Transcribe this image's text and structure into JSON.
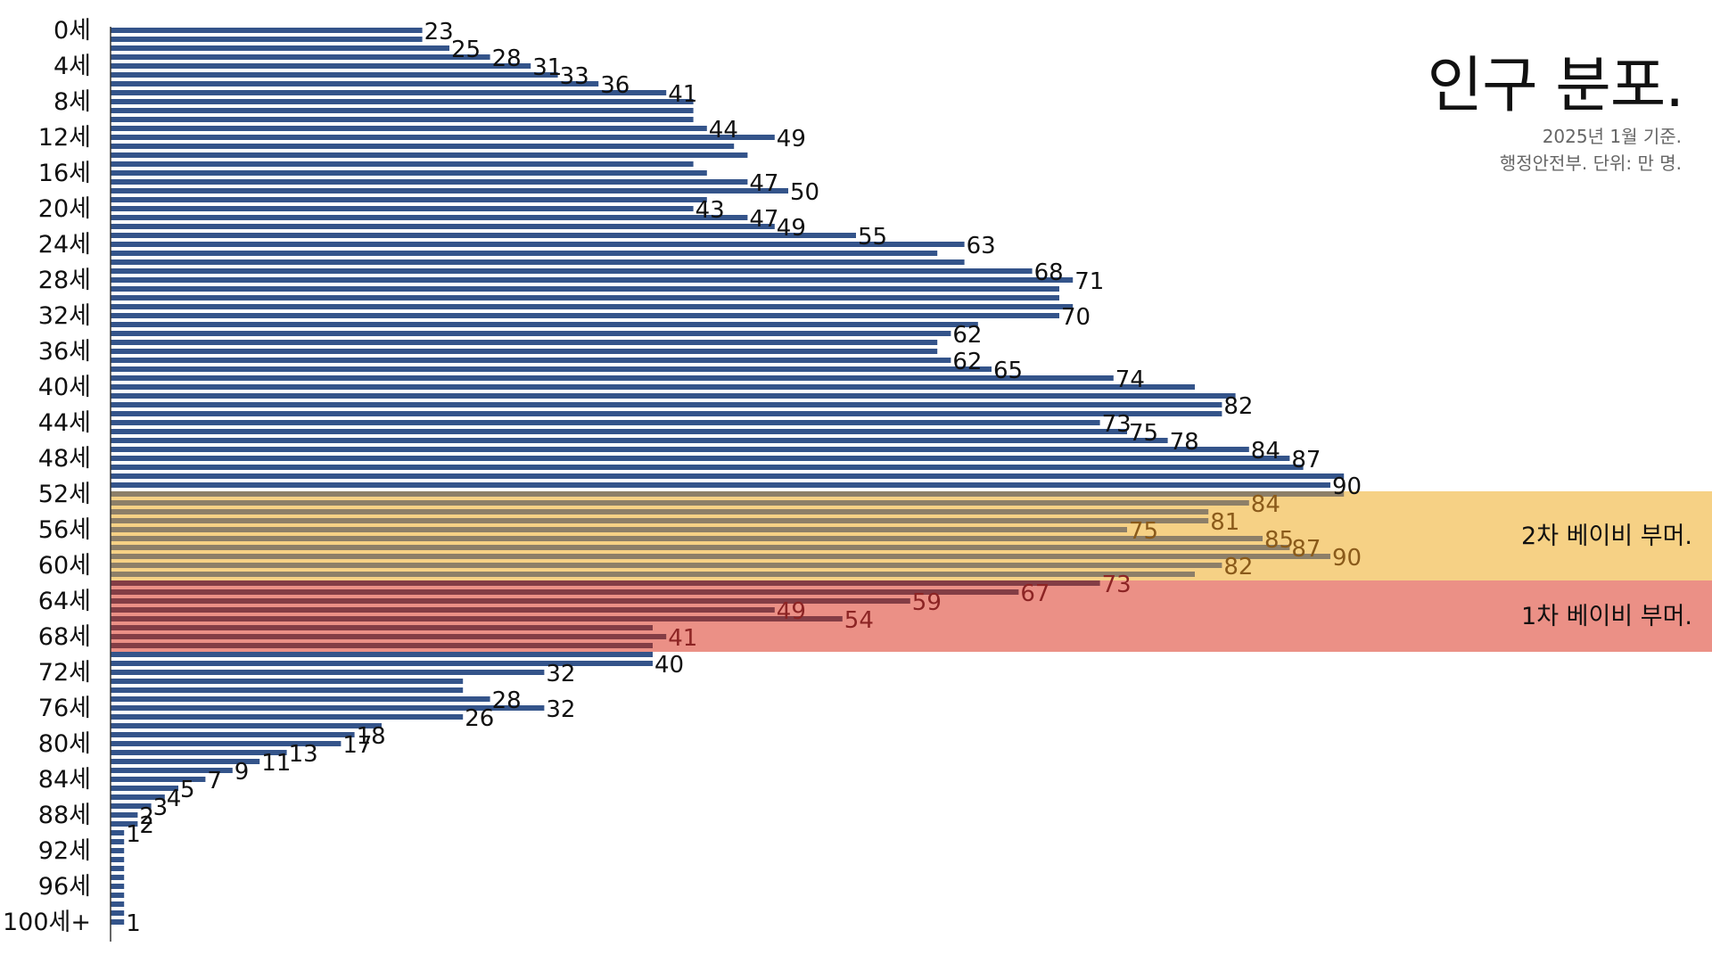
{
  "title": "인구 분포.",
  "subtitle_lines": [
    "2025년 1월 기준.",
    "행정안전부. 단위: 만 명."
  ],
  "chart_data": {
    "type": "bar",
    "orientation": "horizontal",
    "unit": "만 명",
    "grid": false,
    "bar_color": "#34548a",
    "categories": [
      "0세",
      "1세",
      "2세",
      "3세",
      "4세",
      "5세",
      "6세",
      "7세",
      "8세",
      "9세",
      "10세",
      "11세",
      "12세",
      "13세",
      "14세",
      "15세",
      "16세",
      "17세",
      "18세",
      "19세",
      "20세",
      "21세",
      "22세",
      "23세",
      "24세",
      "25세",
      "26세",
      "27세",
      "28세",
      "29세",
      "30세",
      "31세",
      "32세",
      "33세",
      "34세",
      "35세",
      "36세",
      "37세",
      "38세",
      "39세",
      "40세",
      "41세",
      "42세",
      "43세",
      "44세",
      "45세",
      "46세",
      "47세",
      "48세",
      "49세",
      "50세",
      "51세",
      "52세",
      "53세",
      "54세",
      "55세",
      "56세",
      "57세",
      "58세",
      "59세",
      "60세",
      "61세",
      "62세",
      "63세",
      "64세",
      "65세",
      "66세",
      "67세",
      "68세",
      "69세",
      "70세",
      "71세",
      "72세",
      "73세",
      "74세",
      "75세",
      "76세",
      "77세",
      "78세",
      "79세",
      "80세",
      "81세",
      "82세",
      "83세",
      "84세",
      "85세",
      "86세",
      "87세",
      "88세",
      "89세",
      "90세",
      "91세",
      "92세",
      "93세",
      "94세",
      "95세",
      "96세",
      "97세",
      "98세",
      "99세",
      "100세+"
    ],
    "tick_labels": [
      "0세",
      "4세",
      "8세",
      "12세",
      "16세",
      "20세",
      "24세",
      "28세",
      "32세",
      "36세",
      "40세",
      "44세",
      "48세",
      "52세",
      "56세",
      "60세",
      "64세",
      "68세",
      "72세",
      "76세",
      "80세",
      "84세",
      "88세",
      "92세",
      "96세",
      "100세+"
    ],
    "values": [
      23,
      23,
      25,
      28,
      31,
      33,
      36,
      41,
      43,
      43,
      43,
      44,
      49,
      46,
      47,
      43,
      44,
      47,
      50,
      44,
      43,
      47,
      49,
      55,
      63,
      61,
      63,
      68,
      71,
      70,
      70,
      71,
      70,
      64,
      62,
      61,
      61,
      62,
      65,
      74,
      80,
      83,
      82,
      82,
      73,
      75,
      78,
      84,
      87,
      88,
      91,
      90,
      91,
      84,
      81,
      81,
      75,
      85,
      87,
      90,
      82,
      80,
      73,
      67,
      59,
      49,
      54,
      40,
      41,
      40,
      40,
      40,
      32,
      26,
      26,
      28,
      32,
      26,
      20,
      18,
      17,
      13,
      11,
      9,
      7,
      5,
      4,
      3,
      2,
      2,
      1,
      1,
      1,
      1,
      1,
      1,
      1,
      1,
      1,
      1,
      1
    ],
    "labeled_indices": [
      0,
      2,
      3,
      4,
      5,
      6,
      7,
      11,
      12,
      17,
      18,
      20,
      21,
      22,
      23,
      24,
      27,
      28,
      32,
      34,
      37,
      38,
      39,
      42,
      44,
      45,
      46,
      47,
      48,
      51,
      53,
      55,
      56,
      57,
      58,
      59,
      60,
      62,
      63,
      64,
      65,
      66,
      68,
      71,
      72,
      75,
      76,
      77,
      79,
      80,
      81,
      82,
      83,
      84,
      85,
      86,
      87,
      88,
      89,
      90,
      100
    ],
    "label_list_note": "",
    "highlights": [
      {
        "label": "2차 베이비 부머.",
        "start_index": 52,
        "end_index": 62,
        "color": "#f4c566",
        "bar_color": "#8d7f68",
        "label_color": "#8a5a1a"
      },
      {
        "label": "1차 베이비 부머.",
        "start_index": 62,
        "end_index": 70,
        "color": "#e67468",
        "bar_color": "#833d45",
        "label_color": "#8c2424"
      }
    ],
    "xlim": [
      0,
      100
    ]
  }
}
